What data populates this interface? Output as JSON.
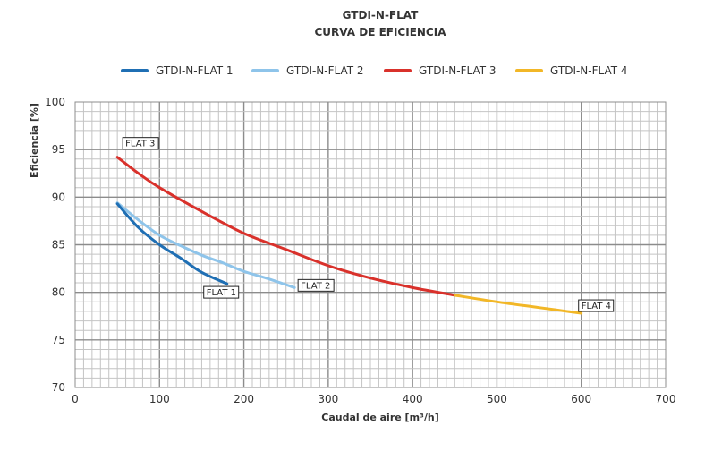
{
  "chart_data": {
    "type": "line",
    "title": "GTDI-N-FLAT",
    "subtitle": "CURVA DE EFICIENCIA",
    "xlabel": "Caudal de aire [m³/h]",
    "ylabel": "Eficiencia  [%]",
    "xlim": [
      0,
      700
    ],
    "ylim": [
      70,
      100
    ],
    "x_ticks": [
      0,
      100,
      200,
      300,
      400,
      500,
      600,
      700
    ],
    "y_ticks": [
      70,
      75,
      80,
      85,
      90,
      95,
      100
    ],
    "grid": true,
    "legend_position": "top",
    "series": [
      {
        "name": "GTDI-N-FLAT 1",
        "color": "#1f6fb4",
        "callout": "FLAT 1",
        "x": [
          50,
          75,
          100,
          125,
          150,
          180
        ],
        "y": [
          89.3,
          86.8,
          85.0,
          83.6,
          82.1,
          80.9
        ]
      },
      {
        "name": "GTDI-N-FLAT 2",
        "color": "#8ec4ea",
        "callout": "FLAT 2",
        "x": [
          50,
          75,
          100,
          125,
          150,
          175,
          200,
          230,
          260
        ],
        "y": [
          89.4,
          87.6,
          86.0,
          84.9,
          83.9,
          83.1,
          82.2,
          81.4,
          80.5
        ]
      },
      {
        "name": "GTDI-N-FLAT 3",
        "color": "#d9312b",
        "callout": "FLAT 3",
        "x": [
          50,
          75,
          100,
          150,
          200,
          250,
          300,
          350,
          400,
          450
        ],
        "y": [
          94.2,
          92.5,
          91.0,
          88.5,
          86.2,
          84.5,
          82.8,
          81.5,
          80.5,
          79.7
        ]
      },
      {
        "name": "GTDI-N-FLAT 4",
        "color": "#f2b727",
        "callout": "FLAT 4",
        "x": [
          450,
          500,
          550,
          600
        ],
        "y": [
          79.7,
          79.0,
          78.4,
          77.8
        ]
      }
    ]
  }
}
